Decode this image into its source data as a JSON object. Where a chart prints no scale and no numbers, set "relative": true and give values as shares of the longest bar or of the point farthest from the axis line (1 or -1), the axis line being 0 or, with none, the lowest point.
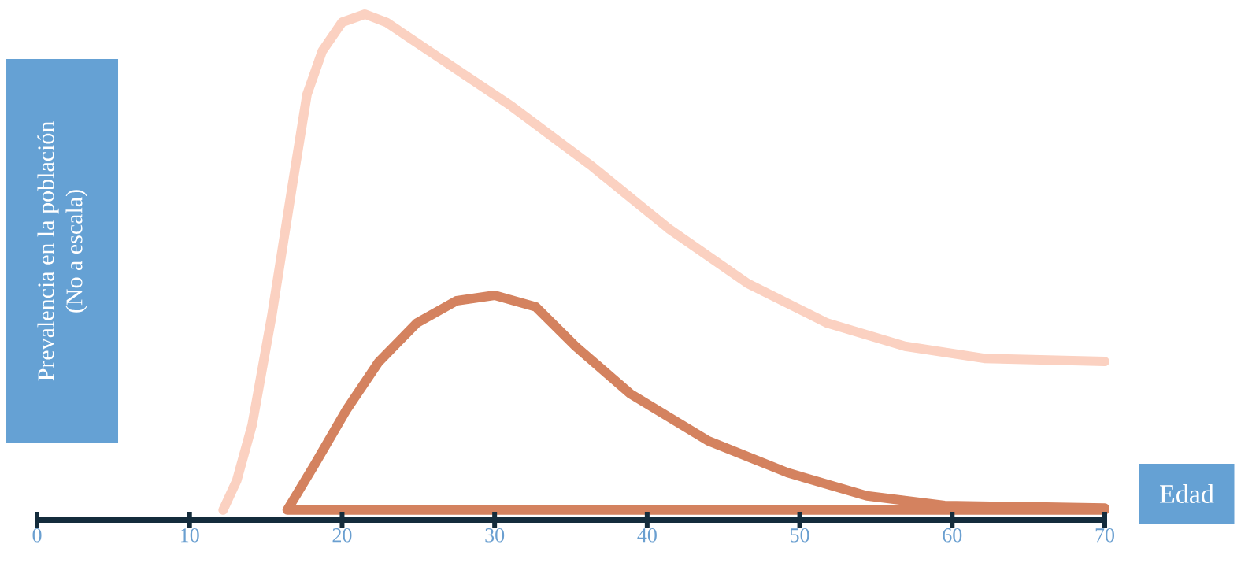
{
  "chart_data": {
    "type": "line",
    "relative": true,
    "xlabel": "Edad",
    "ylabel": "Prevalencia en la población",
    "annotations": [
      "(No a escala)"
    ],
    "xlim": [
      0,
      70
    ],
    "xticks": [
      0,
      10,
      20,
      30,
      40,
      50,
      60,
      70
    ],
    "marker": "none",
    "line_style": "solid",
    "series": [
      {
        "color": "#fbd1c1",
        "x": [
          12.2,
          13.1,
          14.1,
          15.4,
          16.7,
          17.7,
          18.7,
          20.0,
          21.5,
          22.9,
          26.5,
          31.1,
          36.3,
          41.4,
          46.6,
          51.8,
          56.9,
          62.1,
          70
        ],
        "values": [
          0.019,
          0.078,
          0.187,
          0.405,
          0.654,
          0.841,
          0.927,
          0.984,
          1.0,
          0.984,
          0.911,
          0.818,
          0.701,
          0.576,
          0.467,
          0.389,
          0.343,
          0.319,
          0.313
        ]
      },
      {
        "color": "#d4825f",
        "x": [
          70,
          16.4,
          18.2,
          20.3,
          22.4,
          24.9,
          27.5,
          30.0,
          32.7,
          35.3,
          38.9,
          44.0,
          49.2,
          54.4,
          59.5,
          70
        ],
        "values": [
          0.019,
          0.019,
          0.109,
          0.218,
          0.312,
          0.389,
          0.433,
          0.444,
          0.421,
          0.343,
          0.249,
          0.156,
          0.093,
          0.047,
          0.028,
          0.023
        ]
      }
    ]
  }
}
